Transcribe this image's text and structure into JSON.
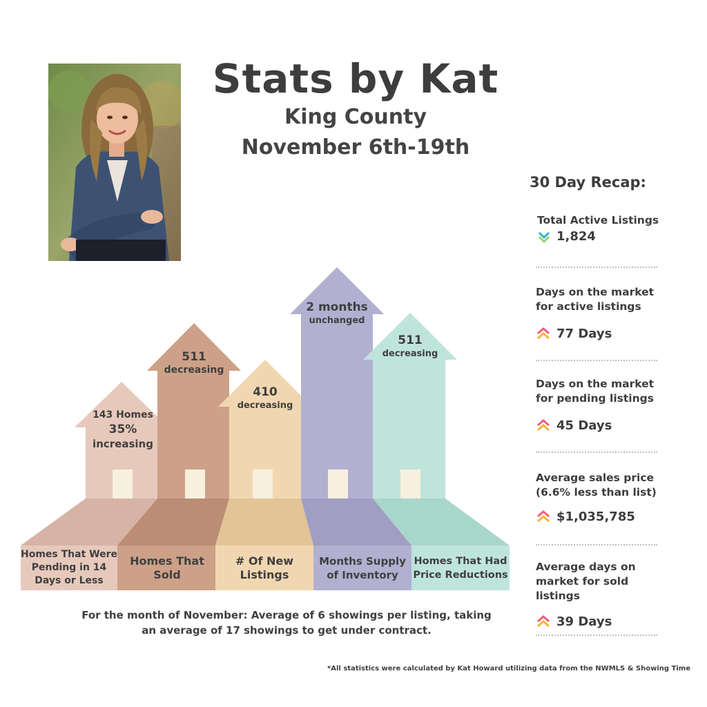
{
  "header": {
    "title": "Stats by Kat",
    "region": "King County",
    "date_range": "November 6th-19th"
  },
  "bars": [
    {
      "line1": "143 Homes",
      "line2": "35%",
      "line3": "increasing",
      "label": "Homes That Were Pending in 14 Days or Less",
      "color": "#e7c9bc"
    },
    {
      "line1": "511",
      "line2": "decreasing",
      "label": "Homes That Sold",
      "color": "#cca187"
    },
    {
      "line1": "410",
      "line2": "decreasing",
      "label": "# Of New Listings",
      "color": "#f1d7b1"
    },
    {
      "line1": "2 months",
      "line2": "unchanged",
      "label": "Months Supply of Inventory",
      "color": "#b2b0d1"
    },
    {
      "line1": "511",
      "line2": "decreasing",
      "label": "Homes That Had Price Reductions",
      "color": "#bfe4dc"
    }
  ],
  "footer_note": "For the month of November: Average of 6 showings per listing, taking an average of 17 showings to get under contract.",
  "disclaimer": "*All statistics were calculated by Kat Howard utilizing data from the NWMLS & Showing Time",
  "recap": {
    "title": "30 Day Recap:",
    "items": [
      {
        "label": "Total Active Listings",
        "value": "1,824",
        "trend": "down",
        "icon": "double-chevron-down-icon"
      },
      {
        "label": "Days on the market for active listings",
        "value": "77 Days",
        "trend": "up",
        "icon": "double-chevron-up-icon"
      },
      {
        "label": "Days on the market for pending listings",
        "value": "45 Days",
        "trend": "up",
        "icon": "double-chevron-up-icon"
      },
      {
        "label": "Average sales price (6.6% less than list)",
        "value": "$1,035,785",
        "trend": "up",
        "icon": "double-chevron-up-icon"
      },
      {
        "label": "Average days on market for sold listings",
        "value": "39 Days",
        "trend": "up",
        "icon": "double-chevron-up-icon"
      }
    ]
  },
  "colors": {
    "down_icon_a": "#2bb5c7",
    "down_icon_b": "#9bd46a",
    "up_icon_a": "#f25c7c",
    "up_icon_b": "#f2b632"
  }
}
